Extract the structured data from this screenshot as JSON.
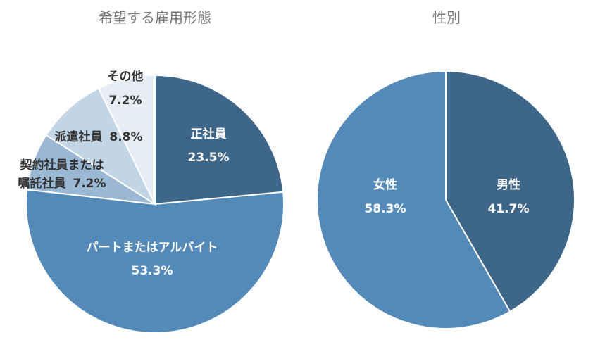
{
  "chart_data": [
    {
      "type": "pie",
      "title": "希望する雇用形態",
      "slices": [
        {
          "label": "正社員",
          "value": 23.5,
          "value_label": "23.5%",
          "color": "#3d6689"
        },
        {
          "label": "パートまたはアルバイト",
          "value": 53.3,
          "value_label": "53.3%",
          "color": "#548ab8"
        },
        {
          "label": "契約社員または",
          "label2": "嘱託社員",
          "value": 7.2,
          "value_label": "7.2%",
          "color": "#9ab8d3"
        },
        {
          "label": "派遣社員",
          "value": 8.8,
          "value_label": "8.8%",
          "color": "#c2d5e5"
        },
        {
          "label": "その他",
          "value": 7.2,
          "value_label": "7.2%",
          "color": "#e6edf4"
        }
      ]
    },
    {
      "type": "pie",
      "title": "性別",
      "slices": [
        {
          "label": "男性",
          "value": 41.7,
          "value_label": "41.7%",
          "color": "#3d6689"
        },
        {
          "label": "女性",
          "value": 58.3,
          "value_label": "58.3%",
          "color": "#548ab8"
        }
      ]
    }
  ]
}
